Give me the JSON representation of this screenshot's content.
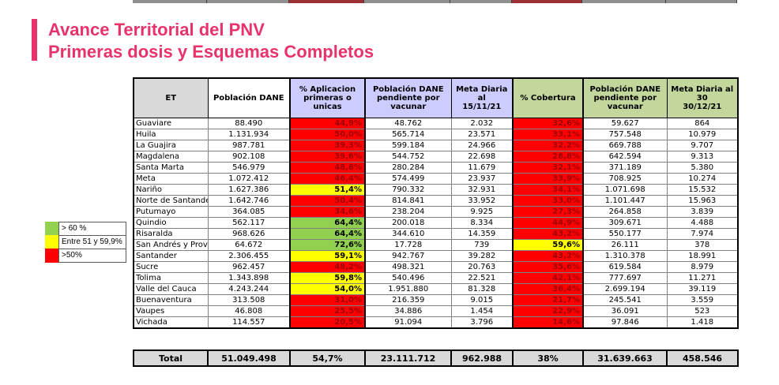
{
  "title": {
    "line1": "Avance Territorial del PNV",
    "line2": "Primeras dosis y Esquemas Completos"
  },
  "colors": {
    "accent_pink": "#e8336a",
    "cell_red": "#ff0000",
    "cell_yellow": "#ffff00",
    "cell_green": "#92d050",
    "red_cell_text": "#9c0006",
    "header_gray": "#d9d9d9",
    "header_lavender": "#ccccff",
    "header_green": "#c3d69b",
    "strip_gray": "#8f8f8f",
    "strip_dark_red": "#9c2f34"
  },
  "legend": {
    "items": [
      {
        "label": "> 60 %",
        "color": "green"
      },
      {
        "label": "Entre 51 y 59,9%",
        "color": "yellow"
      },
      {
        "label": ">50%",
        "color": "red"
      }
    ]
  },
  "table": {
    "header": [
      {
        "label": "ET"
      },
      {
        "label": "Población DANE"
      },
      {
        "label": "% Aplicacion\nprimeras o unicas"
      },
      {
        "label": "Población DANE\npendiente por\nvacunar"
      },
      {
        "label": "Meta Diaria al\n15/11/21"
      },
      {
        "label": "% Cobertura"
      },
      {
        "label": "Población DANE\npendiente por\nvacunar"
      },
      {
        "label": "Meta Diaria al 30\n30/12/21"
      }
    ],
    "rows": [
      {
        "et": "Guaviare",
        "poblacion_dane": "88.490",
        "aplicacion": {
          "value": "44,9%",
          "level": "red"
        },
        "pendiente_vacunar": "48.762",
        "meta_15_11": "2.032",
        "cobertura": {
          "value": "32,6%",
          "level": "red"
        },
        "pendiente_vacunar_2": "59.627",
        "meta_30_12": "864"
      },
      {
        "et": "Huila",
        "poblacion_dane": "1.131.934",
        "aplicacion": {
          "value": "50,0%",
          "level": "red"
        },
        "pendiente_vacunar": "565.714",
        "meta_15_11": "23.571",
        "cobertura": {
          "value": "33,1%",
          "level": "red"
        },
        "pendiente_vacunar_2": "757.548",
        "meta_30_12": "10.979"
      },
      {
        "et": "La Guajira",
        "poblacion_dane": "987.781",
        "aplicacion": {
          "value": "39,3%",
          "level": "red"
        },
        "pendiente_vacunar": "599.184",
        "meta_15_11": "24.966",
        "cobertura": {
          "value": "32,2%",
          "level": "red"
        },
        "pendiente_vacunar_2": "669.788",
        "meta_30_12": "9.707"
      },
      {
        "et": "Magdalena",
        "poblacion_dane": "902.108",
        "aplicacion": {
          "value": "39,6%",
          "level": "red"
        },
        "pendiente_vacunar": "544.752",
        "meta_15_11": "22.698",
        "cobertura": {
          "value": "28,8%",
          "level": "red"
        },
        "pendiente_vacunar_2": "642.594",
        "meta_30_12": "9.313"
      },
      {
        "et": "Santa Marta",
        "poblacion_dane": "546.979",
        "aplicacion": {
          "value": "48,8%",
          "level": "red"
        },
        "pendiente_vacunar": "280.284",
        "meta_15_11": "11.679",
        "cobertura": {
          "value": "32,1%",
          "level": "red"
        },
        "pendiente_vacunar_2": "371.189",
        "meta_30_12": "5.380"
      },
      {
        "et": "Meta",
        "poblacion_dane": "1.072.412",
        "aplicacion": {
          "value": "46,4%",
          "level": "red"
        },
        "pendiente_vacunar": "574.499",
        "meta_15_11": "23.937",
        "cobertura": {
          "value": "33,9%",
          "level": "red"
        },
        "pendiente_vacunar_2": "708.925",
        "meta_30_12": "10.274"
      },
      {
        "et": "Nariño",
        "poblacion_dane": "1.627.386",
        "aplicacion": {
          "value": "51,4%",
          "level": "yellow"
        },
        "pendiente_vacunar": "790.332",
        "meta_15_11": "32.931",
        "cobertura": {
          "value": "34,1%",
          "level": "red"
        },
        "pendiente_vacunar_2": "1.071.698",
        "meta_30_12": "15.532"
      },
      {
        "et": "Norte de Santande",
        "poblacion_dane": "1.642.746",
        "aplicacion": {
          "value": "50,4%",
          "level": "red"
        },
        "pendiente_vacunar": "814.841",
        "meta_15_11": "33.952",
        "cobertura": {
          "value": "33,0%",
          "level": "red"
        },
        "pendiente_vacunar_2": "1.101.447",
        "meta_30_12": "15.963"
      },
      {
        "et": "Putumayo",
        "poblacion_dane": "364.085",
        "aplicacion": {
          "value": "34,6%",
          "level": "red"
        },
        "pendiente_vacunar": "238.204",
        "meta_15_11": "9.925",
        "cobertura": {
          "value": "27,3%",
          "level": "red"
        },
        "pendiente_vacunar_2": "264.858",
        "meta_30_12": "3.839"
      },
      {
        "et": "Quindio",
        "poblacion_dane": "562.117",
        "aplicacion": {
          "value": "64,4%",
          "level": "green"
        },
        "pendiente_vacunar": "200.018",
        "meta_15_11": "8.334",
        "cobertura": {
          "value": "44,9%",
          "level": "red"
        },
        "pendiente_vacunar_2": "309.671",
        "meta_30_12": "4.488"
      },
      {
        "et": "Risaralda",
        "poblacion_dane": "968.626",
        "aplicacion": {
          "value": "64,4%",
          "level": "green"
        },
        "pendiente_vacunar": "344.610",
        "meta_15_11": "14.359",
        "cobertura": {
          "value": "43,2%",
          "level": "red"
        },
        "pendiente_vacunar_2": "550.177",
        "meta_30_12": "7.974"
      },
      {
        "et": "San Andrés y Prov",
        "poblacion_dane": "64.672",
        "aplicacion": {
          "value": "72,6%",
          "level": "green"
        },
        "pendiente_vacunar": "17.728",
        "meta_15_11": "739",
        "cobertura": {
          "value": "59,6%",
          "level": "yellow"
        },
        "pendiente_vacunar_2": "26.111",
        "meta_30_12": "378"
      },
      {
        "et": "Santander",
        "poblacion_dane": "2.306.455",
        "aplicacion": {
          "value": "59,1%",
          "level": "yellow"
        },
        "pendiente_vacunar": "942.767",
        "meta_15_11": "39.282",
        "cobertura": {
          "value": "43,2%",
          "level": "red"
        },
        "pendiente_vacunar_2": "1.310.378",
        "meta_30_12": "18.991"
      },
      {
        "et": "Sucre",
        "poblacion_dane": "962.457",
        "aplicacion": {
          "value": "48,2%",
          "level": "red"
        },
        "pendiente_vacunar": "498.321",
        "meta_15_11": "20.763",
        "cobertura": {
          "value": "35,6%",
          "level": "red"
        },
        "pendiente_vacunar_2": "619.584",
        "meta_30_12": "8.979"
      },
      {
        "et": "Tolima",
        "poblacion_dane": "1.343.898",
        "aplicacion": {
          "value": "59,8%",
          "level": "yellow"
        },
        "pendiente_vacunar": "540.496",
        "meta_15_11": "22.521",
        "cobertura": {
          "value": "42,1%",
          "level": "red"
        },
        "pendiente_vacunar_2": "777.697",
        "meta_30_12": "11.271"
      },
      {
        "et": "Valle del Cauca",
        "poblacion_dane": "4.243.244",
        "aplicacion": {
          "value": "54,0%",
          "level": "yellow"
        },
        "pendiente_vacunar": "1.951.880",
        "meta_15_11": "81.328",
        "cobertura": {
          "value": "36,4%",
          "level": "red"
        },
        "pendiente_vacunar_2": "2.699.194",
        "meta_30_12": "39.119"
      },
      {
        "et": "Buenaventura",
        "poblacion_dane": "313.508",
        "aplicacion": {
          "value": "31,0%",
          "level": "red"
        },
        "pendiente_vacunar": "216.359",
        "meta_15_11": "9.015",
        "cobertura": {
          "value": "21,7%",
          "level": "red"
        },
        "pendiente_vacunar_2": "245.541",
        "meta_30_12": "3.559"
      },
      {
        "et": "Vaupes",
        "poblacion_dane": "46.808",
        "aplicacion": {
          "value": "25,5%",
          "level": "red"
        },
        "pendiente_vacunar": "34.886",
        "meta_15_11": "1.454",
        "cobertura": {
          "value": "22,9%",
          "level": "red"
        },
        "pendiente_vacunar_2": "36.091",
        "meta_30_12": "523"
      },
      {
        "et": "Vichada",
        "poblacion_dane": "114.557",
        "aplicacion": {
          "value": "20,5%",
          "level": "red"
        },
        "pendiente_vacunar": "91.094",
        "meta_15_11": "3.796",
        "cobertura": {
          "value": "14,6%",
          "level": "red"
        },
        "pendiente_vacunar_2": "97.846",
        "meta_30_12": "1.418"
      }
    ],
    "total": {
      "label": "Total",
      "poblacion_dane": "51.049.498",
      "aplicacion": {
        "value": "54,7%",
        "level": "yellow"
      },
      "pendiente_vacunar": "23.111.712",
      "meta_15_11": "962.988",
      "cobertura": {
        "value": "38%",
        "level": "red"
      },
      "pendiente_vacunar_2": "31.639.663",
      "meta_30_12": "458.546"
    }
  }
}
